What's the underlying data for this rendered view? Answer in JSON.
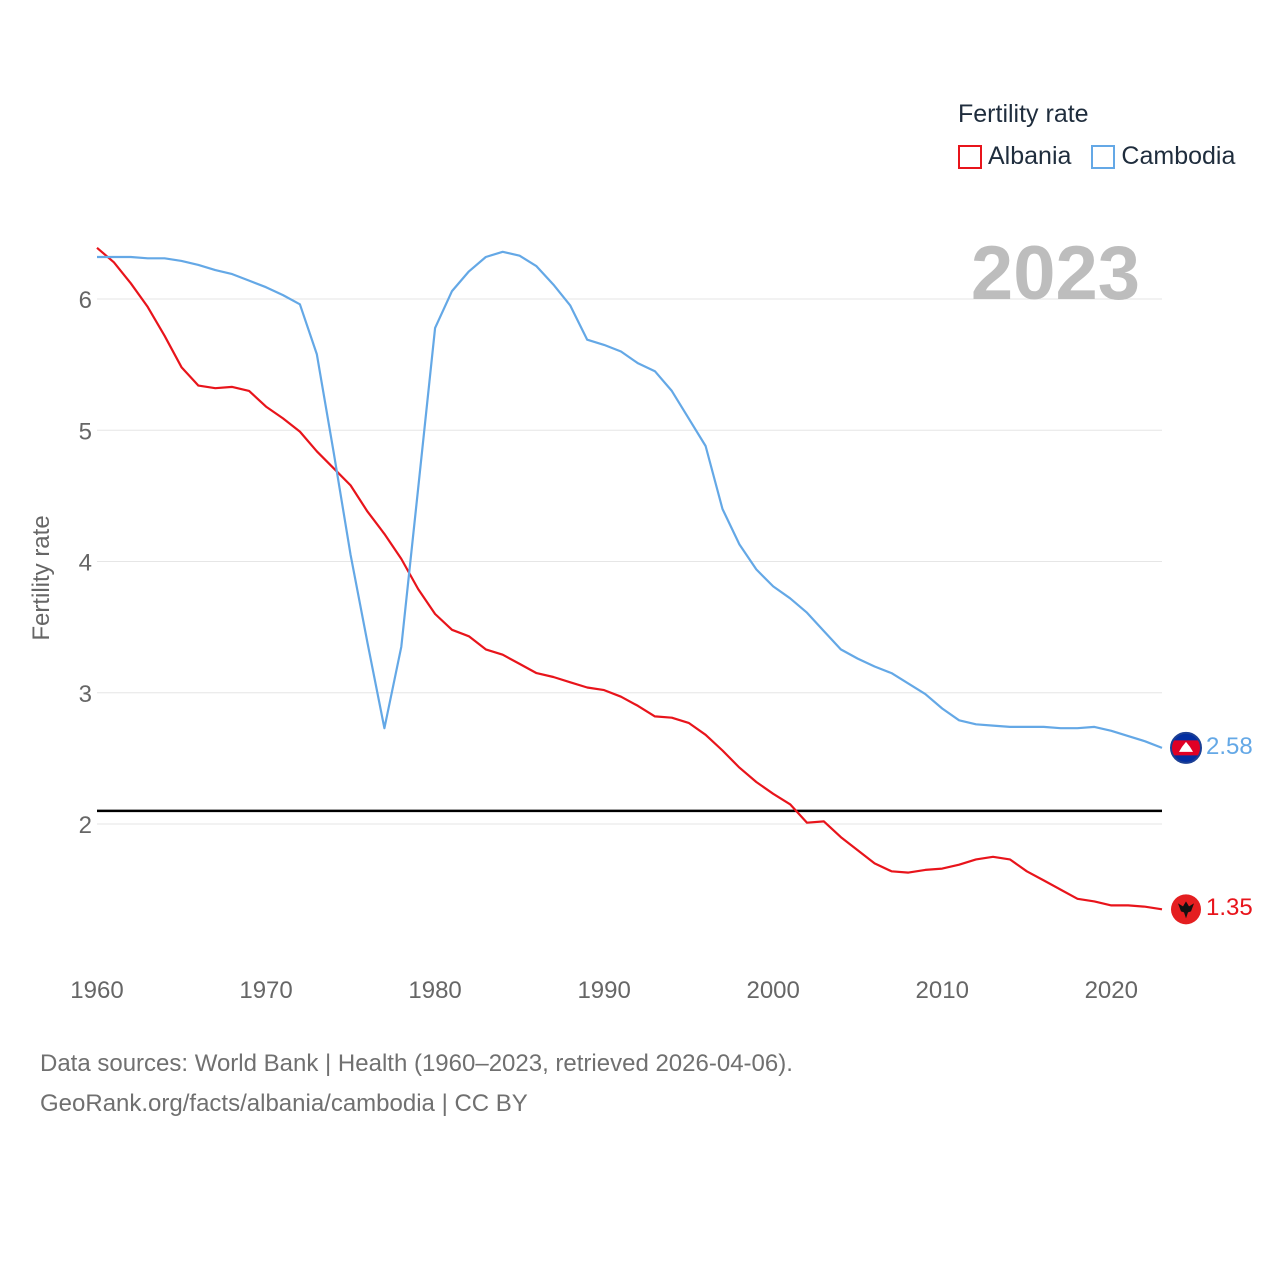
{
  "legend": {
    "title": "Fertility rate",
    "items": [
      {
        "name": "Albania",
        "color": "#e8141b"
      },
      {
        "name": "Cambodia",
        "color": "#64a8e6"
      }
    ]
  },
  "current_year": "2023",
  "y_axis_label": "Fertility rate",
  "source": {
    "line1": "Data sources: World Bank | Health (1960–2023, retrieved 2026-04-06).",
    "line2": "GeoRank.org/facts/albania/cambodia | CC BY"
  },
  "end_labels": {
    "albania": "1.35",
    "cambodia": "2.58"
  },
  "chart_data": {
    "type": "line",
    "title": "Fertility rate",
    "xlabel": "",
    "ylabel": "Fertility rate",
    "xlim": [
      1960,
      2023
    ],
    "ylim": [
      1.0,
      6.5
    ],
    "x_ticks": [
      1960,
      1970,
      1980,
      1990,
      2000,
      2010,
      2020
    ],
    "y_ticks": [
      2,
      3,
      4,
      5,
      6
    ],
    "grid": true,
    "reference_line": 2.1,
    "x": [
      1960,
      1961,
      1962,
      1963,
      1964,
      1965,
      1966,
      1967,
      1968,
      1969,
      1970,
      1971,
      1972,
      1973,
      1974,
      1975,
      1976,
      1977,
      1978,
      1979,
      1980,
      1981,
      1982,
      1983,
      1984,
      1985,
      1986,
      1987,
      1988,
      1989,
      1990,
      1991,
      1992,
      1993,
      1994,
      1995,
      1996,
      1997,
      1998,
      1999,
      2000,
      2001,
      2002,
      2003,
      2004,
      2005,
      2006,
      2007,
      2008,
      2009,
      2010,
      2011,
      2012,
      2013,
      2014,
      2015,
      2016,
      2017,
      2018,
      2019,
      2020,
      2021,
      2022,
      2023
    ],
    "series": [
      {
        "name": "Albania",
        "color": "#e8141b",
        "values": [
          6.39,
          6.28,
          6.12,
          5.94,
          5.72,
          5.48,
          5.34,
          5.32,
          5.33,
          5.3,
          5.18,
          5.09,
          4.99,
          4.84,
          4.71,
          4.58,
          4.38,
          4.21,
          4.02,
          3.79,
          3.6,
          3.48,
          3.43,
          3.33,
          3.29,
          3.22,
          3.15,
          3.12,
          3.08,
          3.04,
          3.02,
          2.97,
          2.9,
          2.82,
          2.81,
          2.77,
          2.68,
          2.56,
          2.43,
          2.32,
          2.23,
          2.15,
          2.01,
          2.02,
          1.9,
          1.8,
          1.7,
          1.64,
          1.63,
          1.65,
          1.66,
          1.69,
          1.73,
          1.75,
          1.73,
          1.64,
          1.57,
          1.5,
          1.43,
          1.41,
          1.38,
          1.38,
          1.37,
          1.35
        ]
      },
      {
        "name": "Cambodia",
        "color": "#64a8e6",
        "values": [
          6.32,
          6.32,
          6.32,
          6.31,
          6.31,
          6.29,
          6.26,
          6.22,
          6.19,
          6.14,
          6.09,
          6.03,
          5.96,
          5.58,
          4.83,
          4.05,
          3.38,
          2.73,
          3.35,
          4.56,
          5.78,
          6.06,
          6.21,
          6.32,
          6.36,
          6.33,
          6.25,
          6.11,
          5.95,
          5.69,
          5.65,
          5.6,
          5.51,
          5.45,
          5.3,
          5.09,
          4.88,
          4.4,
          4.13,
          3.94,
          3.81,
          3.72,
          3.61,
          3.47,
          3.33,
          3.26,
          3.2,
          3.15,
          3.07,
          2.99,
          2.88,
          2.79,
          2.76,
          2.75,
          2.74,
          2.74,
          2.74,
          2.73,
          2.73,
          2.74,
          2.71,
          2.67,
          2.63,
          2.58
        ]
      }
    ]
  }
}
